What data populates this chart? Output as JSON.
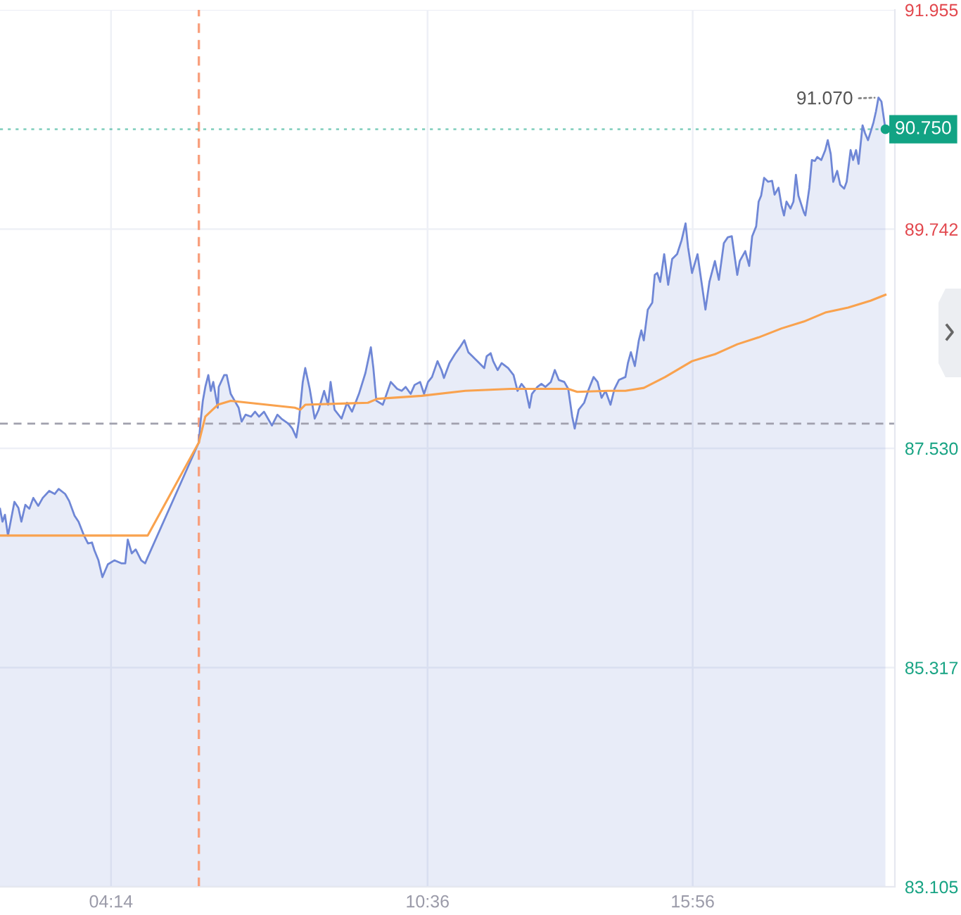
{
  "chart_data": {
    "type": "area",
    "xlim": [
      2.0,
      20.0
    ],
    "xticks": [
      {
        "value": 4.2333,
        "label": "04:14"
      },
      {
        "value": 10.6,
        "label": "10:36"
      },
      {
        "value": 15.9333,
        "label": "15:56"
      }
    ],
    "ylim": [
      83.105,
      91.955
    ],
    "yticks": [
      91.955,
      89.742,
      {
        "value": 87.53,
        "label": "87.530"
      },
      85.317,
      83.105
    ],
    "grid": true,
    "series": [
      {
        "color": "#6f87d6",
        "x": [
          2.0,
          2.05,
          2.1,
          2.16,
          2.29,
          2.37,
          2.43,
          2.51,
          2.59,
          2.67,
          2.77,
          2.86,
          2.99,
          3.1,
          3.18,
          3.31,
          3.39,
          3.5,
          3.58,
          3.69,
          3.77,
          3.85,
          3.9,
          3.98,
          4.06,
          4.17,
          4.3,
          4.44,
          4.52,
          4.57,
          4.65,
          4.73,
          4.84,
          4.92,
          4.97,
          6.0,
          6.03,
          6.08,
          6.13,
          6.19,
          6.24,
          6.29,
          6.38,
          6.4,
          6.51,
          6.56,
          6.64,
          6.72,
          6.8,
          6.86,
          6.94,
          7.05,
          7.13,
          7.21,
          7.31,
          7.39,
          7.47,
          7.58,
          7.66,
          7.8,
          7.88,
          7.96,
          8.01,
          8.09,
          8.14,
          8.23,
          8.33,
          8.41,
          8.52,
          8.6,
          8.65,
          8.73,
          8.87,
          8.98,
          9.08,
          9.22,
          9.35,
          9.46,
          9.51,
          9.57,
          9.7,
          9.75,
          9.86,
          9.99,
          10.08,
          10.16,
          10.26,
          10.34,
          10.45,
          10.53,
          10.61,
          10.69,
          10.8,
          10.88,
          10.93,
          11.04,
          11.15,
          11.25,
          11.34,
          11.42,
          11.5,
          11.6,
          11.74,
          11.79,
          11.87,
          11.92,
          12.01,
          12.09,
          12.22,
          12.33,
          12.41,
          12.49,
          12.57,
          12.65,
          12.7,
          12.81,
          12.89,
          12.97,
          13.08,
          13.16,
          13.24,
          13.35,
          13.43,
          13.51,
          13.56,
          13.64,
          13.75,
          13.83,
          13.94,
          14.02,
          14.1,
          14.18,
          14.28,
          14.36,
          14.45,
          14.58,
          14.63,
          14.69,
          14.77,
          14.85,
          14.9,
          14.95,
          15.03,
          15.12,
          15.17,
          15.22,
          15.28,
          15.36,
          15.44,
          15.52,
          15.62,
          15.71,
          15.79,
          15.84,
          15.92,
          16.03,
          16.11,
          16.19,
          16.27,
          16.38,
          16.46,
          16.56,
          16.64,
          16.72,
          16.83,
          16.88,
          16.99,
          17.07,
          17.13,
          17.21,
          17.26,
          17.31,
          17.37,
          17.45,
          17.53,
          17.58,
          17.66,
          17.72,
          17.77,
          17.82,
          17.9,
          17.96,
          18.01,
          18.06,
          18.17,
          18.2,
          18.28,
          18.33,
          18.39,
          18.44,
          18.52,
          18.6,
          18.65,
          18.71,
          18.76,
          18.84,
          18.9,
          18.98,
          19.03,
          19.11,
          19.16,
          19.22,
          19.27,
          19.35,
          19.4,
          19.46,
          19.51,
          19.57,
          19.62,
          19.67,
          19.73,
          19.81
        ],
        "values": [
          86.92,
          86.79,
          86.86,
          86.65,
          86.99,
          86.93,
          86.79,
          86.96,
          86.92,
          87.03,
          86.95,
          87.03,
          87.1,
          87.07,
          87.12,
          87.07,
          87.0,
          86.85,
          86.79,
          86.65,
          86.57,
          86.58,
          86.5,
          86.4,
          86.23,
          86.36,
          86.4,
          86.37,
          86.37,
          86.61,
          86.47,
          86.51,
          86.4,
          86.37,
          86.43,
          87.59,
          87.78,
          88.01,
          88.15,
          88.27,
          88.11,
          88.2,
          87.94,
          88.15,
          88.27,
          88.27,
          88.08,
          88.01,
          87.94,
          87.8,
          87.87,
          87.85,
          87.9,
          87.85,
          87.9,
          87.83,
          87.76,
          87.87,
          87.83,
          87.78,
          87.73,
          87.64,
          87.8,
          88.2,
          88.34,
          88.13,
          87.83,
          87.92,
          88.11,
          87.97,
          88.2,
          87.92,
          87.83,
          87.99,
          87.9,
          88.08,
          88.29,
          88.55,
          88.34,
          88.01,
          87.97,
          88.04,
          88.2,
          88.13,
          88.11,
          88.15,
          88.08,
          88.17,
          88.2,
          88.08,
          88.2,
          88.25,
          88.41,
          88.32,
          88.24,
          88.39,
          88.48,
          88.55,
          88.62,
          88.5,
          88.46,
          88.41,
          88.34,
          88.46,
          88.49,
          88.41,
          88.32,
          88.39,
          88.34,
          88.27,
          88.11,
          88.18,
          88.13,
          87.94,
          88.08,
          88.15,
          88.18,
          88.15,
          88.2,
          88.32,
          88.22,
          88.2,
          88.13,
          87.85,
          87.73,
          87.92,
          87.99,
          88.11,
          88.25,
          88.2,
          88.04,
          88.11,
          87.97,
          88.13,
          88.22,
          88.25,
          88.39,
          88.5,
          88.36,
          88.62,
          88.72,
          88.62,
          88.93,
          89.0,
          89.28,
          89.3,
          89.21,
          89.49,
          89.18,
          89.44,
          89.49,
          89.63,
          89.8,
          89.56,
          89.3,
          89.49,
          89.21,
          88.93,
          89.21,
          89.42,
          89.23,
          89.6,
          89.66,
          89.67,
          89.28,
          89.42,
          89.52,
          89.37,
          89.67,
          89.77,
          90.02,
          90.08,
          90.26,
          90.22,
          90.23,
          90.09,
          90.16,
          89.98,
          89.88,
          90.02,
          89.95,
          90.02,
          90.29,
          90.08,
          89.91,
          89.88,
          90.16,
          90.44,
          90.43,
          90.47,
          90.44,
          90.54,
          90.64,
          90.5,
          90.22,
          90.33,
          90.19,
          90.15,
          90.22,
          90.54,
          90.44,
          90.54,
          90.4,
          90.79,
          90.71,
          90.64,
          90.72,
          90.82,
          90.93,
          91.07,
          91.03,
          90.75
        ]
      },
      {
        "type": "line",
        "color": "#f9a24e",
        "x": [
          2.0,
          4.97,
          6.0,
          6.13,
          6.38,
          6.64,
          7.93,
          8.04,
          8.14,
          9.4,
          9.59,
          10.48,
          11.36,
          12.27,
          13.43,
          13.61,
          14.23,
          14.58,
          14.95,
          15.38,
          15.92,
          16.38,
          16.83,
          17.26,
          17.72,
          18.17,
          18.6,
          19.06,
          19.51,
          19.81
        ],
        "values": [
          86.65,
          86.65,
          87.59,
          87.85,
          87.97,
          88.01,
          87.94,
          87.92,
          87.97,
          87.99,
          88.03,
          88.06,
          88.11,
          88.13,
          88.13,
          88.1,
          88.11,
          88.11,
          88.14,
          88.25,
          88.41,
          88.48,
          88.58,
          88.65,
          88.74,
          88.81,
          88.9,
          88.95,
          89.02,
          89.08
        ]
      },
      {
        "type": "scatter",
        "color": "#12a384",
        "x": [
          19.81
        ],
        "values": [
          90.75
        ]
      }
    ],
    "ref_lines": [
      {
        "axis": "y",
        "value": 87.78,
        "color": "#a0a0ad",
        "line_style": "dashed"
      },
      {
        "axis": "x",
        "value": 6.0,
        "color": "#f8a07e",
        "line_style": "dashed"
      },
      {
        "axis": "y",
        "value": 90.75,
        "label": "90.750",
        "color": "#12a384",
        "line_style": "dotted"
      }
    ],
    "annotations": [
      {
        "text": "91.070",
        "x": 19.67,
        "y": 91.07
      }
    ]
  }
}
